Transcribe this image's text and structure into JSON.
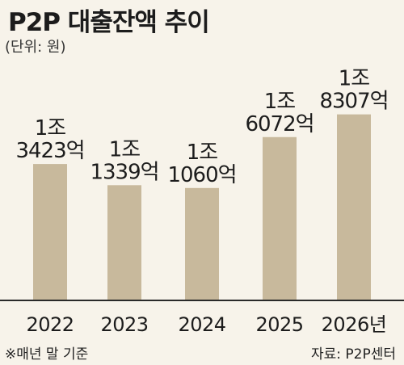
{
  "title": "P2P 대출잔액 추이",
  "unit_label": "(단위: 원)",
  "footnote": "※매년 말 기준",
  "source": "자료: P2P센터",
  "colors": {
    "bar": "#c8b99c",
    "background": "#f7f3ea",
    "text": "#1c1c1c"
  },
  "chart_data": {
    "type": "bar",
    "categories": [
      "2022",
      "2023",
      "2024",
      "2025",
      "2026년"
    ],
    "values": [
      13423,
      11339,
      11060,
      16072,
      18307
    ],
    "value_unit": "억 원",
    "data_labels": [
      [
        "1조",
        "3423억"
      ],
      [
        "1조",
        "1339억"
      ],
      [
        "1조",
        "1060억"
      ],
      [
        "1조",
        "6072억"
      ],
      [
        "1조",
        "8307억"
      ]
    ],
    "ylim": [
      0,
      24000
    ],
    "grid": false,
    "legend": "none"
  }
}
